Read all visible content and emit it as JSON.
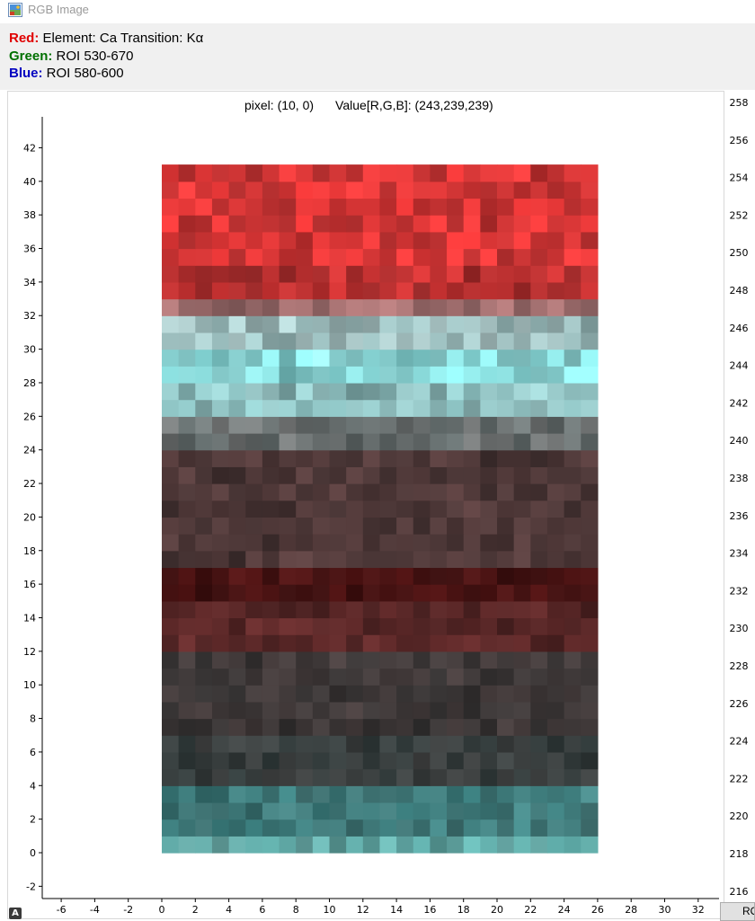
{
  "window": {
    "title": "RGB Image",
    "icon": "rgb-image-icon"
  },
  "legend": {
    "red": {
      "label": "Red:",
      "value": "Element: Ca Transition: Kα",
      "color": "#e00000"
    },
    "green": {
      "label": "Green:",
      "value": "ROI 530-670",
      "color": "#007000"
    },
    "blue": {
      "label": "Blue:",
      "value": "ROI 580-600",
      "color": "#0000c0"
    }
  },
  "status": {
    "pixel": "pixel: (10, 0)",
    "value": "Value[R,G,B]: (243,239,239)"
  },
  "colorbar": {
    "labels": [
      "258",
      "256",
      "254",
      "252",
      "250",
      "248",
      "246",
      "244",
      "242",
      "240",
      "238",
      "236",
      "234",
      "232",
      "230",
      "228",
      "226",
      "224",
      "222",
      "220",
      "218",
      "216"
    ]
  },
  "chart_data": {
    "type": "heatmap",
    "title": "",
    "xlabel": "",
    "ylabel": "",
    "xlim": [
      -7,
      33.5
    ],
    "ylim": [
      -3,
      44
    ],
    "x_ticks": [
      -6,
      -4,
      -2,
      0,
      2,
      4,
      6,
      8,
      10,
      12,
      14,
      16,
      18,
      20,
      22,
      24,
      26,
      28,
      30,
      32
    ],
    "y_ticks": [
      -2,
      0,
      2,
      4,
      6,
      8,
      10,
      12,
      14,
      16,
      18,
      20,
      22,
      24,
      26,
      28,
      30,
      32,
      34,
      36,
      38,
      40,
      42
    ],
    "image_columns": 26,
    "image_rows": 41,
    "row_band_colors": [
      {
        "rows": [
          0,
          1
        ],
        "color": "#5fa3a0"
      },
      {
        "rows": [
          1,
          4
        ],
        "color": "#3f7a7a"
      },
      {
        "rows": [
          4,
          7
        ],
        "color": "#383e3e"
      },
      {
        "rows": [
          7,
          12
        ],
        "color": "#3e3838"
      },
      {
        "rows": [
          12,
          15
        ],
        "color": "#5a2828"
      },
      {
        "rows": [
          15,
          17
        ],
        "color": "#4a1414"
      },
      {
        "rows": [
          17,
          24
        ],
        "color": "#4e3838"
      },
      {
        "rows": [
          24,
          26
        ],
        "color": "#6a7070"
      },
      {
        "rows": [
          26,
          28
        ],
        "color": "#8ab8b8"
      },
      {
        "rows": [
          28,
          30
        ],
        "color": "#8ad8d8"
      },
      {
        "rows": [
          30,
          32
        ],
        "color": "#9cbaba"
      },
      {
        "rows": [
          32,
          33
        ],
        "color": "#9a6a6a"
      },
      {
        "rows": [
          33,
          35
        ],
        "color": "#b83030"
      },
      {
        "rows": [
          35,
          41
        ],
        "color": "#d63636"
      }
    ]
  },
  "roi_button": {
    "label": "ROI"
  },
  "toolbar_icon": {
    "label": "A"
  }
}
